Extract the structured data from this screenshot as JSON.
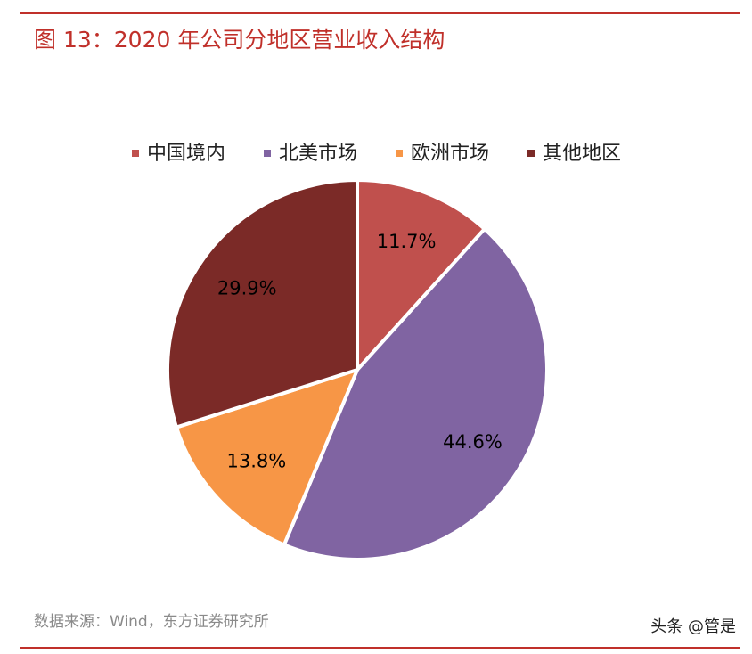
{
  "chart_data": {
    "type": "pie",
    "title": "图 13：2020 年公司分地区营业收入结构",
    "categories": [
      "中国境内",
      "北美市场",
      "欧洲市场",
      "其他地区"
    ],
    "values": [
      11.7,
      44.6,
      13.8,
      29.9
    ],
    "value_labels": [
      "11.7%",
      "44.6%",
      "13.8%",
      "29.9%"
    ],
    "colors": [
      "#c0504d",
      "#8064a2",
      "#f79646",
      "#7b2a27"
    ],
    "legend": "top"
  },
  "source": "数据来源：Wind，东方证券研究所",
  "watermark": "头条 @管是"
}
